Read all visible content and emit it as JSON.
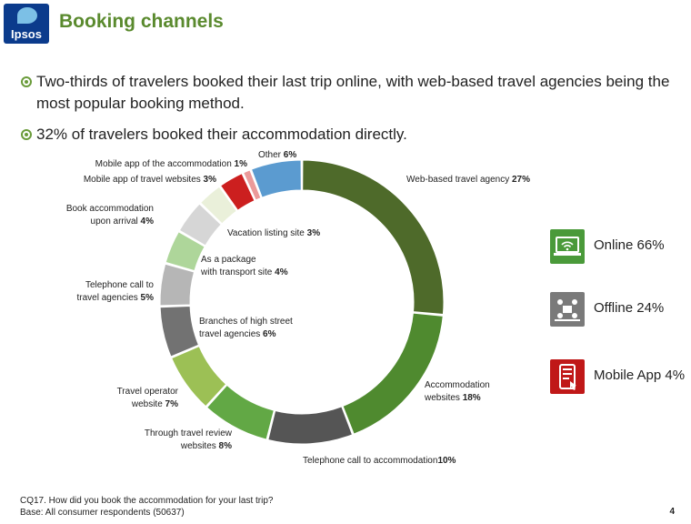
{
  "header": {
    "logo_text": "Ipsos",
    "title": "Booking channels"
  },
  "bullets": [
    "Two-thirds of travelers booked their last trip online, with web-based travel agencies being the most popular booking method.",
    "32% of travelers booked their accommodation directly."
  ],
  "chart_data": {
    "type": "pie",
    "variant": "donut",
    "title": "",
    "slices": [
      {
        "label": "Web-based travel agency",
        "value": 27,
        "pct_text": "27%",
        "color": "#4e6a2a"
      },
      {
        "label": "Accommodation websites",
        "value": 18,
        "pct_text": "18%",
        "color": "#4f8a2f"
      },
      {
        "label": "Telephone call to accommodation",
        "value": 10,
        "pct_text": "10%",
        "color": "#555555"
      },
      {
        "label": "Through travel review websites",
        "value": 8,
        "pct_text": "8%",
        "color": "#62a845"
      },
      {
        "label": "Travel operator website",
        "value": 7,
        "pct_text": "7%",
        "color": "#9cc055"
      },
      {
        "label": "Branches of high street travel agencies",
        "value": 6,
        "pct_text": "6%",
        "color": "#727272"
      },
      {
        "label": "Telephone call to travel agencies",
        "value": 5,
        "pct_text": "5%",
        "color": "#b6b6b6"
      },
      {
        "label": "As a package with transport site",
        "value": 4,
        "pct_text": "4%",
        "color": "#aed69a"
      },
      {
        "label": "Book accommodation upon arrival",
        "value": 4,
        "pct_text": "4%",
        "color": "#d6d6d6"
      },
      {
        "label": "Vacation listing site",
        "value": 3,
        "pct_text": "3%",
        "color": "#eaf0da"
      },
      {
        "label": "Mobile app of travel websites",
        "value": 3,
        "pct_text": "3%",
        "color": "#cc1f1f"
      },
      {
        "label": "Mobile app of the accommodation",
        "value": 1,
        "pct_text": "1%",
        "color": "#eb9a9a"
      },
      {
        "label": "Other",
        "value": 6,
        "pct_text": "6%",
        "color": "#5b9bd0"
      }
    ]
  },
  "legend": [
    {
      "label": "Online 66%",
      "icon": "laptop-wifi-icon",
      "color": "#4a9a3a"
    },
    {
      "label": "Offline 24%",
      "icon": "meeting-people-icon",
      "color": "#7a7a7a"
    },
    {
      "label": "Mobile App 4%",
      "icon": "mobile-app-icon",
      "color": "#c01818"
    }
  ],
  "footer": {
    "question": "CQ17. How did you book the accommodation for your last trip?",
    "base": "Base: All consumer respondents (50637)"
  },
  "page_number": "4"
}
